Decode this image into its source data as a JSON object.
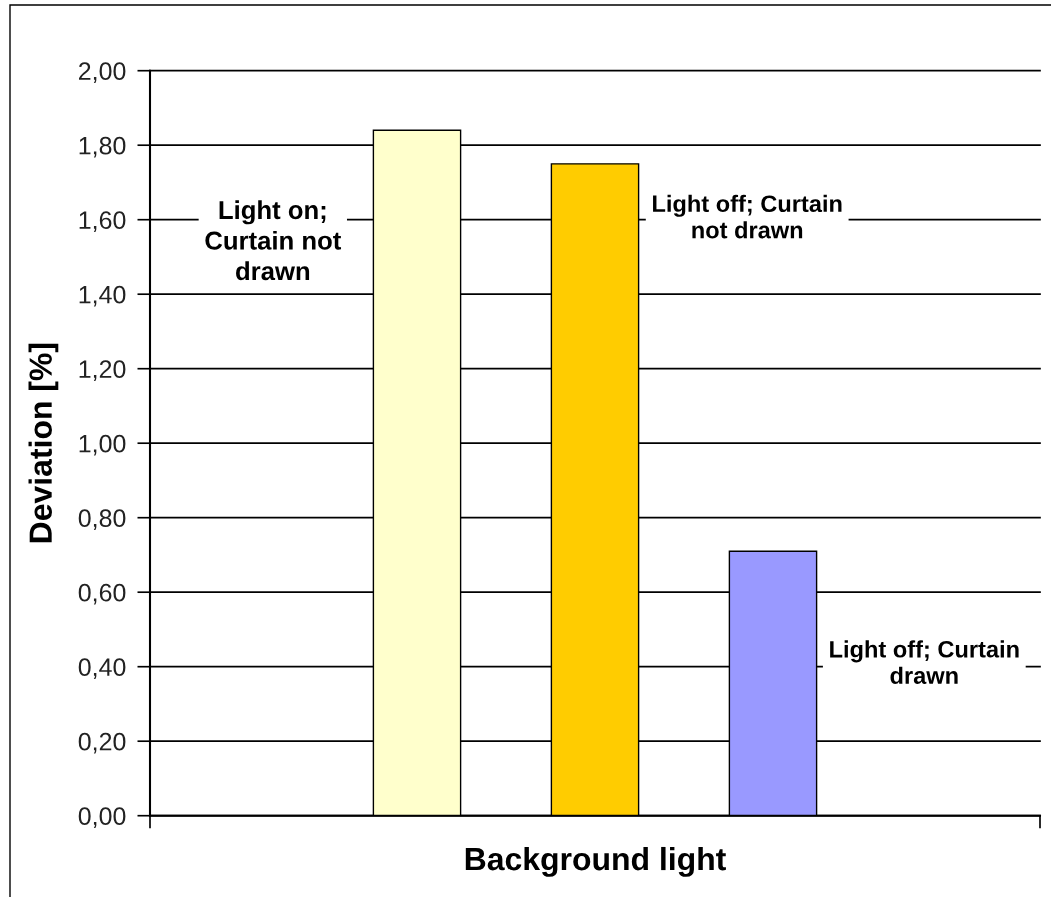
{
  "chart_data": {
    "type": "bar",
    "categories": [
      null
    ],
    "series": [
      {
        "name": "Light on;\nCurtain not\ndrawn",
        "color": "#ffffcc",
        "values": [
          1.84
        ]
      },
      {
        "name": "Light off; Curtain\nnot drawn",
        "color": "#ffcc00",
        "values": [
          1.75
        ]
      },
      {
        "name": "Light off; Curtain\ndrawn",
        "color": "#9999ff",
        "values": [
          0.71
        ]
      }
    ],
    "xlabel": "Background light",
    "ylabel": "Deviation [%]",
    "ylim": [
      0,
      2
    ],
    "yticks": [
      {
        "value": 0,
        "label": "0,00"
      },
      {
        "value": 0.2,
        "label": "0,20"
      },
      {
        "value": 0.4,
        "label": "0,40"
      },
      {
        "value": 0.6,
        "label": "0,60"
      },
      {
        "value": 0.8,
        "label": "0,80"
      },
      {
        "value": 1.0,
        "label": "1,00"
      },
      {
        "value": 1.2,
        "label": "1,20"
      },
      {
        "value": 1.4,
        "label": "1,40"
      },
      {
        "value": 1.6,
        "label": "1,60"
      },
      {
        "value": 1.8,
        "label": "1,80"
      },
      {
        "value": 2.0,
        "label": "2,00"
      }
    ],
    "grid": "y"
  }
}
